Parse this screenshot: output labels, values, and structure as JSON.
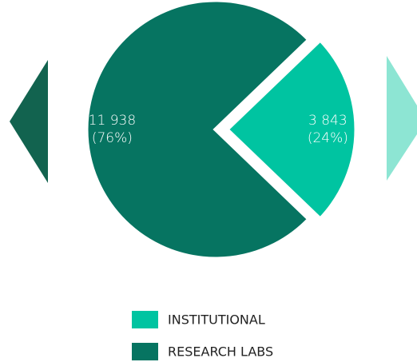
{
  "chart_data": {
    "type": "pie",
    "categories": [
      "INSTITUTIONAL",
      "RESEARCH LABS"
    ],
    "values": [
      3843,
      11938
    ],
    "value_labels": [
      "3 843",
      "11 938"
    ],
    "percents": [
      24,
      76
    ],
    "percent_labels": [
      "(24%)",
      "(76%)"
    ],
    "colors": [
      "#00c4a1",
      "#067461"
    ]
  }
}
